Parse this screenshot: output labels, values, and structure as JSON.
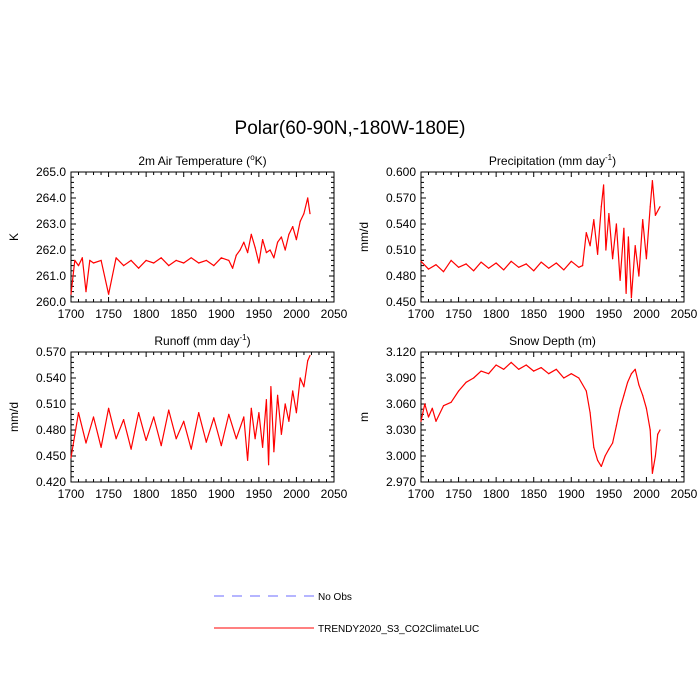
{
  "title": "Polar(60-90N,-180W-180E)",
  "colors": {
    "model": "#ff0000",
    "obs": "#6b6bff",
    "axis": "#000000"
  },
  "legend": {
    "entries": [
      {
        "label": "No Obs",
        "color": "#6b6bff",
        "style": "dashed"
      },
      {
        "label": "TRENDY2020_S3_CO2ClimateLUC",
        "color": "#ff0000",
        "style": "solid"
      }
    ]
  },
  "chart_data": [
    {
      "type": "line",
      "title": "2m Air Temperature (°K)",
      "title_parts": [
        "2m Air Temperature (",
        "o",
        "K)"
      ],
      "xlabel": "",
      "ylabel": "K",
      "xlim": [
        1700,
        2050
      ],
      "ylim": [
        260.0,
        265.0
      ],
      "xticks": [
        "1700",
        "1750",
        "1800",
        "1850",
        "1900",
        "1950",
        "2000",
        "2050"
      ],
      "yticks": [
        "260.0",
        "261.0",
        "262.0",
        "263.0",
        "264.0",
        "265.0"
      ],
      "series": [
        {
          "name": "TRENDY2020_S3_CO2ClimateLUC",
          "x": [
            1700,
            1705,
            1710,
            1715,
            1720,
            1725,
            1730,
            1740,
            1750,
            1760,
            1770,
            1780,
            1790,
            1800,
            1810,
            1820,
            1830,
            1840,
            1850,
            1860,
            1870,
            1880,
            1890,
            1900,
            1910,
            1915,
            1920,
            1925,
            1930,
            1935,
            1940,
            1945,
            1950,
            1955,
            1960,
            1965,
            1970,
            1975,
            1980,
            1985,
            1990,
            1995,
            2000,
            2005,
            2010,
            2015,
            2018
          ],
          "values": [
            260.3,
            261.6,
            261.4,
            261.7,
            260.4,
            261.6,
            261.5,
            261.6,
            260.3,
            261.7,
            261.4,
            261.6,
            261.3,
            261.6,
            261.5,
            261.7,
            261.4,
            261.6,
            261.5,
            261.7,
            261.5,
            261.6,
            261.4,
            261.7,
            261.6,
            261.3,
            261.8,
            262.0,
            262.3,
            261.9,
            262.6,
            262.1,
            261.5,
            262.4,
            261.9,
            262.0,
            261.7,
            262.3,
            262.5,
            262.0,
            262.6,
            262.9,
            262.4,
            263.1,
            263.4,
            264.0,
            263.4
          ]
        }
      ]
    },
    {
      "type": "line",
      "title": "Precipitation (mm day-1)",
      "title_parts": [
        "Precipitation (mm day",
        "-1",
        ")"
      ],
      "xlabel": "",
      "ylabel": "mm/d",
      "xlim": [
        1700,
        2050
      ],
      "ylim": [
        0.45,
        0.6
      ],
      "xticks": [
        "1700",
        "1750",
        "1800",
        "1850",
        "1900",
        "1950",
        "2000",
        "2050"
      ],
      "yticks": [
        "0.450",
        "0.480",
        "0.510",
        "0.540",
        "0.570",
        "0.600"
      ],
      "series": [
        {
          "name": "TRENDY2020_S3_CO2ClimateLUC",
          "x": [
            1700,
            1710,
            1720,
            1730,
            1740,
            1750,
            1760,
            1770,
            1780,
            1790,
            1800,
            1810,
            1820,
            1830,
            1840,
            1850,
            1860,
            1870,
            1880,
            1890,
            1900,
            1910,
            1915,
            1920,
            1925,
            1930,
            1935,
            1940,
            1943,
            1946,
            1950,
            1955,
            1960,
            1965,
            1970,
            1973,
            1976,
            1980,
            1985,
            1990,
            1995,
            2000,
            2005,
            2008,
            2012,
            2018
          ],
          "values": [
            0.497,
            0.488,
            0.493,
            0.485,
            0.498,
            0.49,
            0.494,
            0.486,
            0.496,
            0.489,
            0.495,
            0.487,
            0.497,
            0.49,
            0.494,
            0.486,
            0.496,
            0.489,
            0.495,
            0.487,
            0.497,
            0.49,
            0.492,
            0.53,
            0.515,
            0.545,
            0.505,
            0.56,
            0.585,
            0.51,
            0.552,
            0.5,
            0.54,
            0.475,
            0.535,
            0.46,
            0.525,
            0.455,
            0.515,
            0.48,
            0.545,
            0.5,
            0.56,
            0.59,
            0.55,
            0.56
          ]
        }
      ]
    },
    {
      "type": "line",
      "title": "Runoff (mm day-1)",
      "title_parts": [
        "Runoff (mm day",
        "-1",
        ")"
      ],
      "xlabel": "",
      "ylabel": "mm/d",
      "xlim": [
        1700,
        2050
      ],
      "ylim": [
        0.42,
        0.57
      ],
      "xticks": [
        "1700",
        "1750",
        "1800",
        "1850",
        "1900",
        "1950",
        "2000",
        "2050"
      ],
      "yticks": [
        "0.420",
        "0.450",
        "0.480",
        "0.510",
        "0.540",
        "0.570"
      ],
      "series": [
        {
          "name": "TRENDY2020_S3_CO2ClimateLUC",
          "x": [
            1700,
            1710,
            1720,
            1730,
            1740,
            1750,
            1760,
            1770,
            1780,
            1790,
            1800,
            1810,
            1820,
            1830,
            1840,
            1850,
            1860,
            1870,
            1880,
            1890,
            1900,
            1910,
            1920,
            1930,
            1935,
            1940,
            1945,
            1950,
            1955,
            1960,
            1963,
            1966,
            1970,
            1975,
            1980,
            1985,
            1990,
            1995,
            2000,
            2005,
            2010,
            2015,
            2018
          ],
          "values": [
            0.448,
            0.5,
            0.465,
            0.495,
            0.46,
            0.505,
            0.47,
            0.492,
            0.458,
            0.5,
            0.468,
            0.495,
            0.462,
            0.503,
            0.47,
            0.49,
            0.458,
            0.5,
            0.466,
            0.494,
            0.462,
            0.498,
            0.47,
            0.495,
            0.445,
            0.505,
            0.47,
            0.5,
            0.46,
            0.515,
            0.44,
            0.53,
            0.455,
            0.52,
            0.475,
            0.51,
            0.49,
            0.525,
            0.5,
            0.54,
            0.53,
            0.56,
            0.566
          ]
        }
      ]
    },
    {
      "type": "line",
      "title": "Snow Depth (m)",
      "title_parts": [
        "Snow Depth (m)"
      ],
      "xlabel": "",
      "ylabel": "m",
      "xlim": [
        1700,
        2050
      ],
      "ylim": [
        2.97,
        3.12
      ],
      "xticks": [
        "1700",
        "1750",
        "1800",
        "1850",
        "1900",
        "1950",
        "2000",
        "2050"
      ],
      "yticks": [
        "2.970",
        "3.000",
        "3.030",
        "3.060",
        "3.090",
        "3.120"
      ],
      "series": [
        {
          "name": "TRENDY2020_S3_CO2ClimateLUC",
          "x": [
            1700,
            1705,
            1710,
            1715,
            1720,
            1730,
            1740,
            1750,
            1760,
            1770,
            1780,
            1790,
            1800,
            1810,
            1820,
            1830,
            1840,
            1850,
            1860,
            1870,
            1880,
            1890,
            1900,
            1910,
            1920,
            1925,
            1930,
            1935,
            1940,
            1945,
            1950,
            1955,
            1960,
            1965,
            1970,
            1975,
            1980,
            1985,
            1990,
            1995,
            2000,
            2005,
            2008,
            2012,
            2015,
            2018
          ],
          "values": [
            3.04,
            3.06,
            3.045,
            3.055,
            3.04,
            3.058,
            3.062,
            3.075,
            3.085,
            3.09,
            3.098,
            3.095,
            3.105,
            3.1,
            3.108,
            3.1,
            3.105,
            3.098,
            3.102,
            3.095,
            3.1,
            3.09,
            3.095,
            3.09,
            3.075,
            3.05,
            3.01,
            2.995,
            2.988,
            3.0,
            3.008,
            3.015,
            3.035,
            3.055,
            3.07,
            3.085,
            3.095,
            3.1,
            3.082,
            3.07,
            3.055,
            3.03,
            2.98,
            3.0,
            3.025,
            3.03
          ]
        }
      ]
    }
  ]
}
